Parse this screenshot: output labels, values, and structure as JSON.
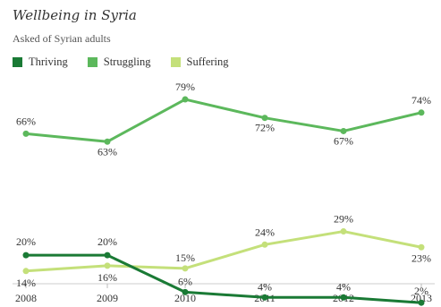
{
  "header": {
    "title": "Wellbeing in Syria",
    "subtitle": "Asked of Syrian adults"
  },
  "chart_data": {
    "type": "line",
    "title": "Wellbeing in Syria",
    "subtitle": "Asked of Syrian adults",
    "x": [
      "2008",
      "2009",
      "2010",
      "2011",
      "2012",
      "2013"
    ],
    "ylim": [
      0,
      85
    ],
    "grid": false,
    "legend_position": "top-left",
    "series": [
      {
        "name": "Thriving",
        "color": "#1a7a35",
        "values": [
          20,
          20,
          6,
          4,
          4,
          2
        ],
        "labels": [
          "20%",
          "20%",
          "6%",
          "4%",
          "4%",
          "2%"
        ]
      },
      {
        "name": "Struggling",
        "color": "#5cb85c",
        "values": [
          66,
          63,
          79,
          72,
          67,
          74
        ],
        "labels": [
          "66%",
          "63%",
          "79%",
          "72%",
          "67%",
          "74%"
        ]
      },
      {
        "name": "Suffering",
        "color": "#c4e07a",
        "values": [
          14,
          16,
          15,
          24,
          29,
          23
        ],
        "labels": [
          "14%",
          "16%",
          "15%",
          "24%",
          "29%",
          "23%"
        ]
      }
    ]
  }
}
